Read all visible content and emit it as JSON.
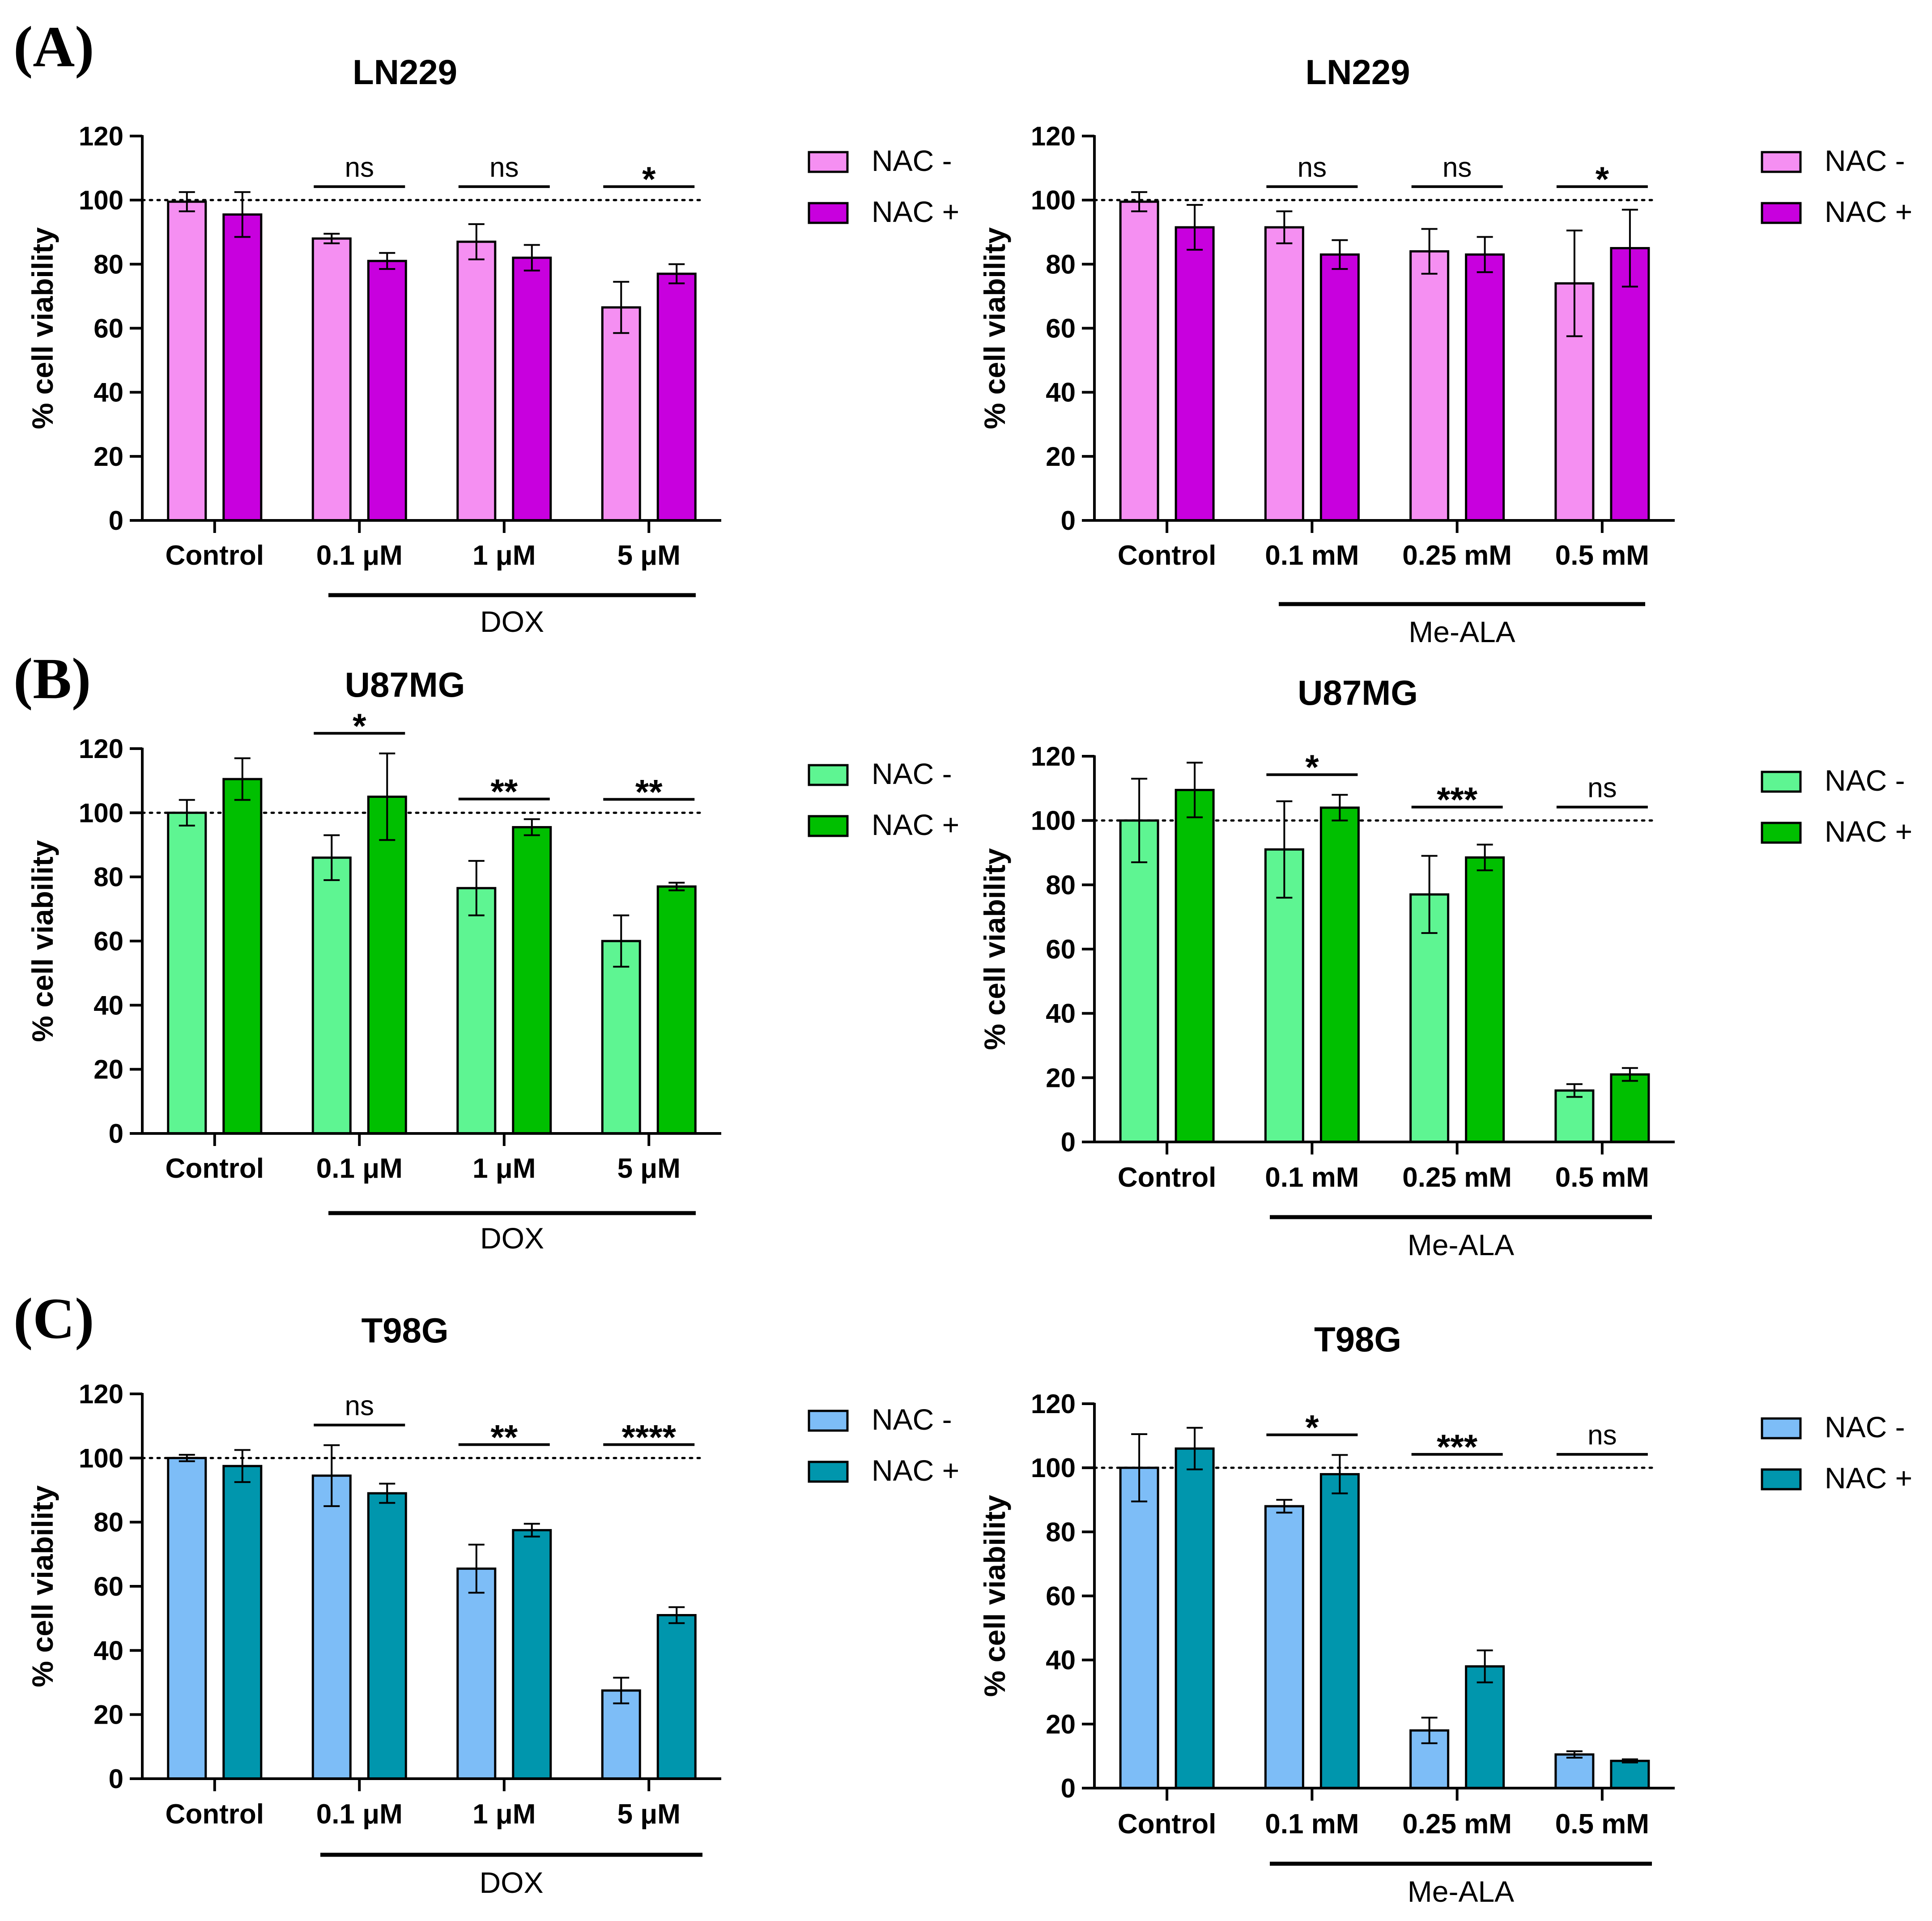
{
  "chart_data": [
    {
      "panel": "(A)",
      "type": "bar",
      "title": "LN229",
      "ylabel": "% cell viability",
      "ylim": [
        0,
        120
      ],
      "yticks": [
        0,
        20,
        40,
        60,
        80,
        100,
        120
      ],
      "reference_line": 100,
      "categories": [
        "Control",
        "0.1 μM",
        "1 μM",
        "5 μM"
      ],
      "group_label": "DOX",
      "series": [
        {
          "name": "NAC -",
          "color": "#f58ff2",
          "values": [
            99.5,
            88,
            87,
            66.5
          ],
          "errors": [
            3,
            1.5,
            5.5,
            8
          ]
        },
        {
          "name": "NAC +",
          "color": "#c800de",
          "values": [
            95.5,
            81,
            82,
            77
          ],
          "errors": [
            7,
            2.5,
            4,
            3
          ]
        }
      ],
      "significance": [
        "",
        "ns",
        "ns",
        "*"
      ]
    },
    {
      "panel": "",
      "type": "bar",
      "title": "LN229",
      "ylabel": "% cell viability",
      "ylim": [
        0,
        120
      ],
      "yticks": [
        0,
        20,
        40,
        60,
        80,
        100,
        120
      ],
      "reference_line": 100,
      "categories": [
        "Control",
        "0.1 mM",
        "0.25 mM",
        "0.5 mM"
      ],
      "group_label": "Me-ALA",
      "series": [
        {
          "name": "NAC -",
          "color": "#f58ff2",
          "values": [
            99.5,
            91.5,
            84,
            74
          ],
          "errors": [
            3,
            5,
            7,
            16.5
          ]
        },
        {
          "name": "NAC +",
          "color": "#c800de",
          "values": [
            91.5,
            83,
            83,
            85
          ],
          "errors": [
            7,
            4.5,
            5.5,
            12
          ]
        }
      ],
      "significance": [
        "",
        "ns",
        "ns",
        "*"
      ]
    },
    {
      "panel": "(B)",
      "type": "bar",
      "title": "U87MG",
      "ylabel": "% cell viability",
      "ylim": [
        0,
        120
      ],
      "yticks": [
        0,
        20,
        40,
        60,
        80,
        100,
        120
      ],
      "reference_line": 100,
      "categories": [
        "Control",
        "0.1 μM",
        "1 μM",
        "5 μM"
      ],
      "group_label": "DOX",
      "series": [
        {
          "name": "NAC -",
          "color": "#5ef592",
          "values": [
            100,
            86,
            76.5,
            60
          ],
          "errors": [
            4,
            7,
            8.5,
            8
          ]
        },
        {
          "name": "NAC +",
          "color": "#00bf00",
          "values": [
            110.5,
            105,
            95.5,
            77
          ],
          "errors": [
            6.5,
            13.5,
            2.5,
            1.2
          ]
        }
      ],
      "significance": [
        "",
        "*",
        "**",
        "**"
      ]
    },
    {
      "panel": "",
      "type": "bar",
      "title": "U87MG",
      "ylabel": "% cell viability",
      "ylim": [
        0,
        120
      ],
      "yticks": [
        0,
        20,
        40,
        60,
        80,
        100,
        120
      ],
      "reference_line": 100,
      "categories": [
        "Control",
        "0.1 mM",
        "0.25 mM",
        "0.5 mM"
      ],
      "group_label": "Me-ALA",
      "series": [
        {
          "name": "NAC -",
          "color": "#5ef592",
          "values": [
            100,
            91,
            77,
            16
          ],
          "errors": [
            13,
            15,
            12,
            2
          ]
        },
        {
          "name": "NAC +",
          "color": "#00bf00",
          "values": [
            109.5,
            104,
            88.5,
            21
          ],
          "errors": [
            8.5,
            4,
            4,
            2
          ]
        }
      ],
      "significance": [
        "",
        "*",
        "***",
        "ns"
      ]
    },
    {
      "panel": "(C)",
      "type": "bar",
      "title": "T98G",
      "ylabel": "% cell viability",
      "ylim": [
        0,
        120
      ],
      "yticks": [
        0,
        20,
        40,
        60,
        80,
        100,
        120
      ],
      "reference_line": 100,
      "categories": [
        "Control",
        "0.1 μM",
        "1 μM",
        "5 μM"
      ],
      "group_label": "DOX",
      "series": [
        {
          "name": "NAC -",
          "color": "#7dbdf7",
          "values": [
            100,
            94.5,
            65.5,
            27.5
          ],
          "errors": [
            1,
            9.5,
            7.5,
            4
          ]
        },
        {
          "name": "NAC +",
          "color": "#0096ad",
          "values": [
            97.5,
            89,
            77.5,
            51
          ],
          "errors": [
            5,
            3,
            2,
            2.5
          ]
        }
      ],
      "significance": [
        "",
        "ns",
        "**",
        "****"
      ]
    },
    {
      "panel": "",
      "type": "bar",
      "title": "T98G",
      "ylabel": "% cell viability",
      "ylim": [
        0,
        120
      ],
      "yticks": [
        0,
        20,
        40,
        60,
        80,
        100,
        120
      ],
      "reference_line": 100,
      "categories": [
        "Control",
        "0.1 mM",
        "0.25 mM",
        "0.5 mM"
      ],
      "group_label": "Me-ALA",
      "series": [
        {
          "name": "NAC -",
          "color": "#7dbdf7",
          "values": [
            100,
            88,
            18,
            10.5
          ],
          "errors": [
            10.5,
            2,
            4,
            1
          ]
        },
        {
          "name": "NAC +",
          "color": "#0096ad",
          "values": [
            106,
            98,
            38,
            8.5
          ],
          "errors": [
            6.5,
            6,
            5,
            0.5
          ]
        }
      ],
      "significance": [
        "",
        "*",
        "***",
        "ns"
      ]
    }
  ]
}
